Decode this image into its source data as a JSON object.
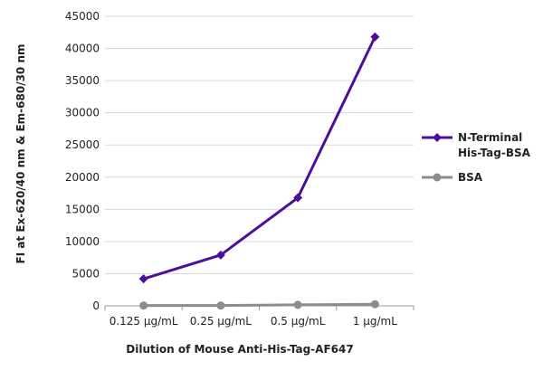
{
  "chart_data": {
    "type": "line",
    "categories": [
      "0.125 µg/mL",
      "0.25 µg/mL",
      "0.5 µg/mL",
      "1 µg/mL"
    ],
    "series": [
      {
        "name": "N-Terminal His-Tag-BSA",
        "name_lines": [
          "N-Terminal",
          "His-Tag-BSA"
        ],
        "values": [
          4200,
          7900,
          16800,
          41800
        ],
        "color": "#4b0f9c",
        "marker": "diamond"
      },
      {
        "name": "BSA",
        "name_lines": [
          "BSA"
        ],
        "values": [
          50,
          50,
          150,
          250
        ],
        "color": "#8c8c8c",
        "marker": "circle"
      }
    ],
    "title": "",
    "xlabel": "Dilution of Mouse Anti-His-Tag-AF647",
    "ylabel": "FI at Ex-620/40 nm & Em-680/30 nm",
    "ylim": [
      0,
      45000
    ],
    "yticks": [
      0,
      5000,
      10000,
      15000,
      20000,
      25000,
      30000,
      35000,
      40000,
      45000
    ],
    "grid": true,
    "legend_position": "right"
  }
}
